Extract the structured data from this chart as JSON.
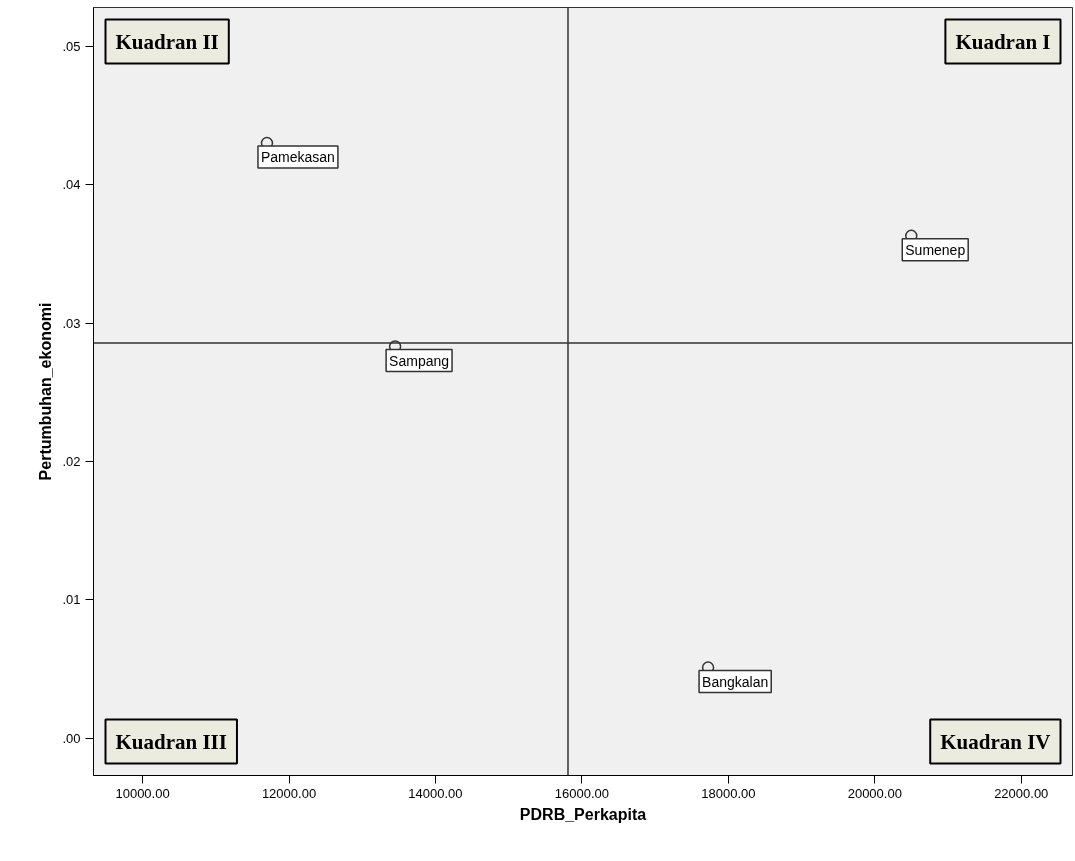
{
  "chart_data": {
    "type": "scatter",
    "xlabel": "PDRB_Perkapita",
    "ylabel": "Pertumbuhan_ekonomi",
    "x": [
      11699,
      20498,
      13449,
      17723
    ],
    "values": [
      0.043,
      0.0363,
      0.0283,
      0.0051
    ],
    "marker": "circle",
    "color": "#333333",
    "xlim": [
      9330,
      22700
    ],
    "ylim": [
      -0.0027,
      0.0528
    ],
    "xticks": [
      {
        "value": 10000,
        "label": "10000.00"
      },
      {
        "value": 12000,
        "label": "12000.00"
      },
      {
        "value": 14000,
        "label": "14000.00"
      },
      {
        "value": 16000,
        "label": "16000.00"
      },
      {
        "value": 18000,
        "label": "18000.00"
      },
      {
        "value": 20000,
        "label": "20000.00"
      },
      {
        "value": 22000,
        "label": "22000.00"
      }
    ],
    "yticks": [
      {
        "value": 0,
        "label": ".00"
      },
      {
        "value": 0.01,
        "label": ".01"
      },
      {
        "value": 0.02,
        "label": ".02"
      },
      {
        "value": 0.03,
        "label": ".03"
      },
      {
        "value": 0.04,
        "label": ".04"
      },
      {
        "value": 0.05,
        "label": ".05"
      }
    ],
    "ref_lines": [
      {
        "axis": "x",
        "value": 15810,
        "color": "#333333"
      },
      {
        "axis": "y",
        "value": 0.02856,
        "color": "#333333"
      }
    ],
    "annotations": [
      "Kuadran II",
      "Kuadran I",
      "Kuadran III",
      "Kuadran IV",
      {
        "text": "Pamekasan",
        "x": 11699,
        "y": 0.043
      },
      {
        "text": "Sumenep",
        "x": 20498,
        "y": 0.0363
      },
      {
        "text": "Sampang",
        "x": 13449,
        "y": 0.0283
      },
      {
        "text": "Bangkalan",
        "x": 17723,
        "y": 0.0051
      }
    ],
    "grid": false
  }
}
